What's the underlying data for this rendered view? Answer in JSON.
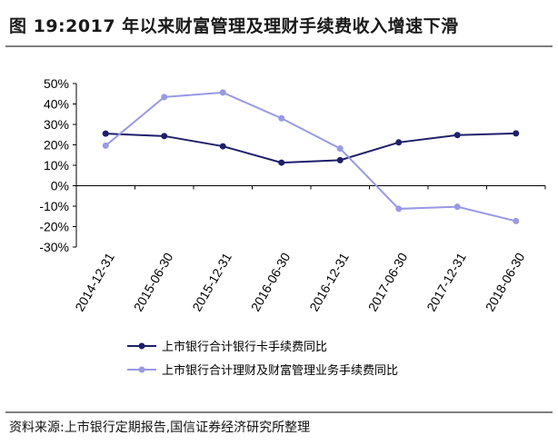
{
  "title": "图 19:2017 年以来财富管理及理财手续费收入增速下滑",
  "source": "资料来源:上市银行定期报告,国信证券经济研究所整理",
  "chart_data": {
    "type": "line",
    "title": "",
    "xlabel": "",
    "ylabel": "",
    "categories": [
      "2014-12-31",
      "2015-06-30",
      "2015-12-31",
      "2016-06-30",
      "2016-12-31",
      "2017-06-30",
      "2017-12-31",
      "2018-06-30"
    ],
    "y_ticks": [
      "50%",
      "40%",
      "30%",
      "20%",
      "10%",
      "0%",
      "-10%",
      "-20%",
      "-30%"
    ],
    "ylim": [
      -30,
      50
    ],
    "grid": false,
    "legend_position": "bottom",
    "series": [
      {
        "name": "上市银行合计银行卡手续费同比",
        "color": "#1f1f6b",
        "values": [
          25.5,
          24.3,
          19.3,
          11.3,
          12.5,
          21.2,
          24.8,
          25.6
        ]
      },
      {
        "name": "上市银行合计理财及财富管理业务手续费同比",
        "color": "#9999e6",
        "values": [
          19.6,
          43.4,
          45.6,
          33.0,
          18.2,
          -11.3,
          -10.3,
          -17.3
        ]
      }
    ]
  }
}
